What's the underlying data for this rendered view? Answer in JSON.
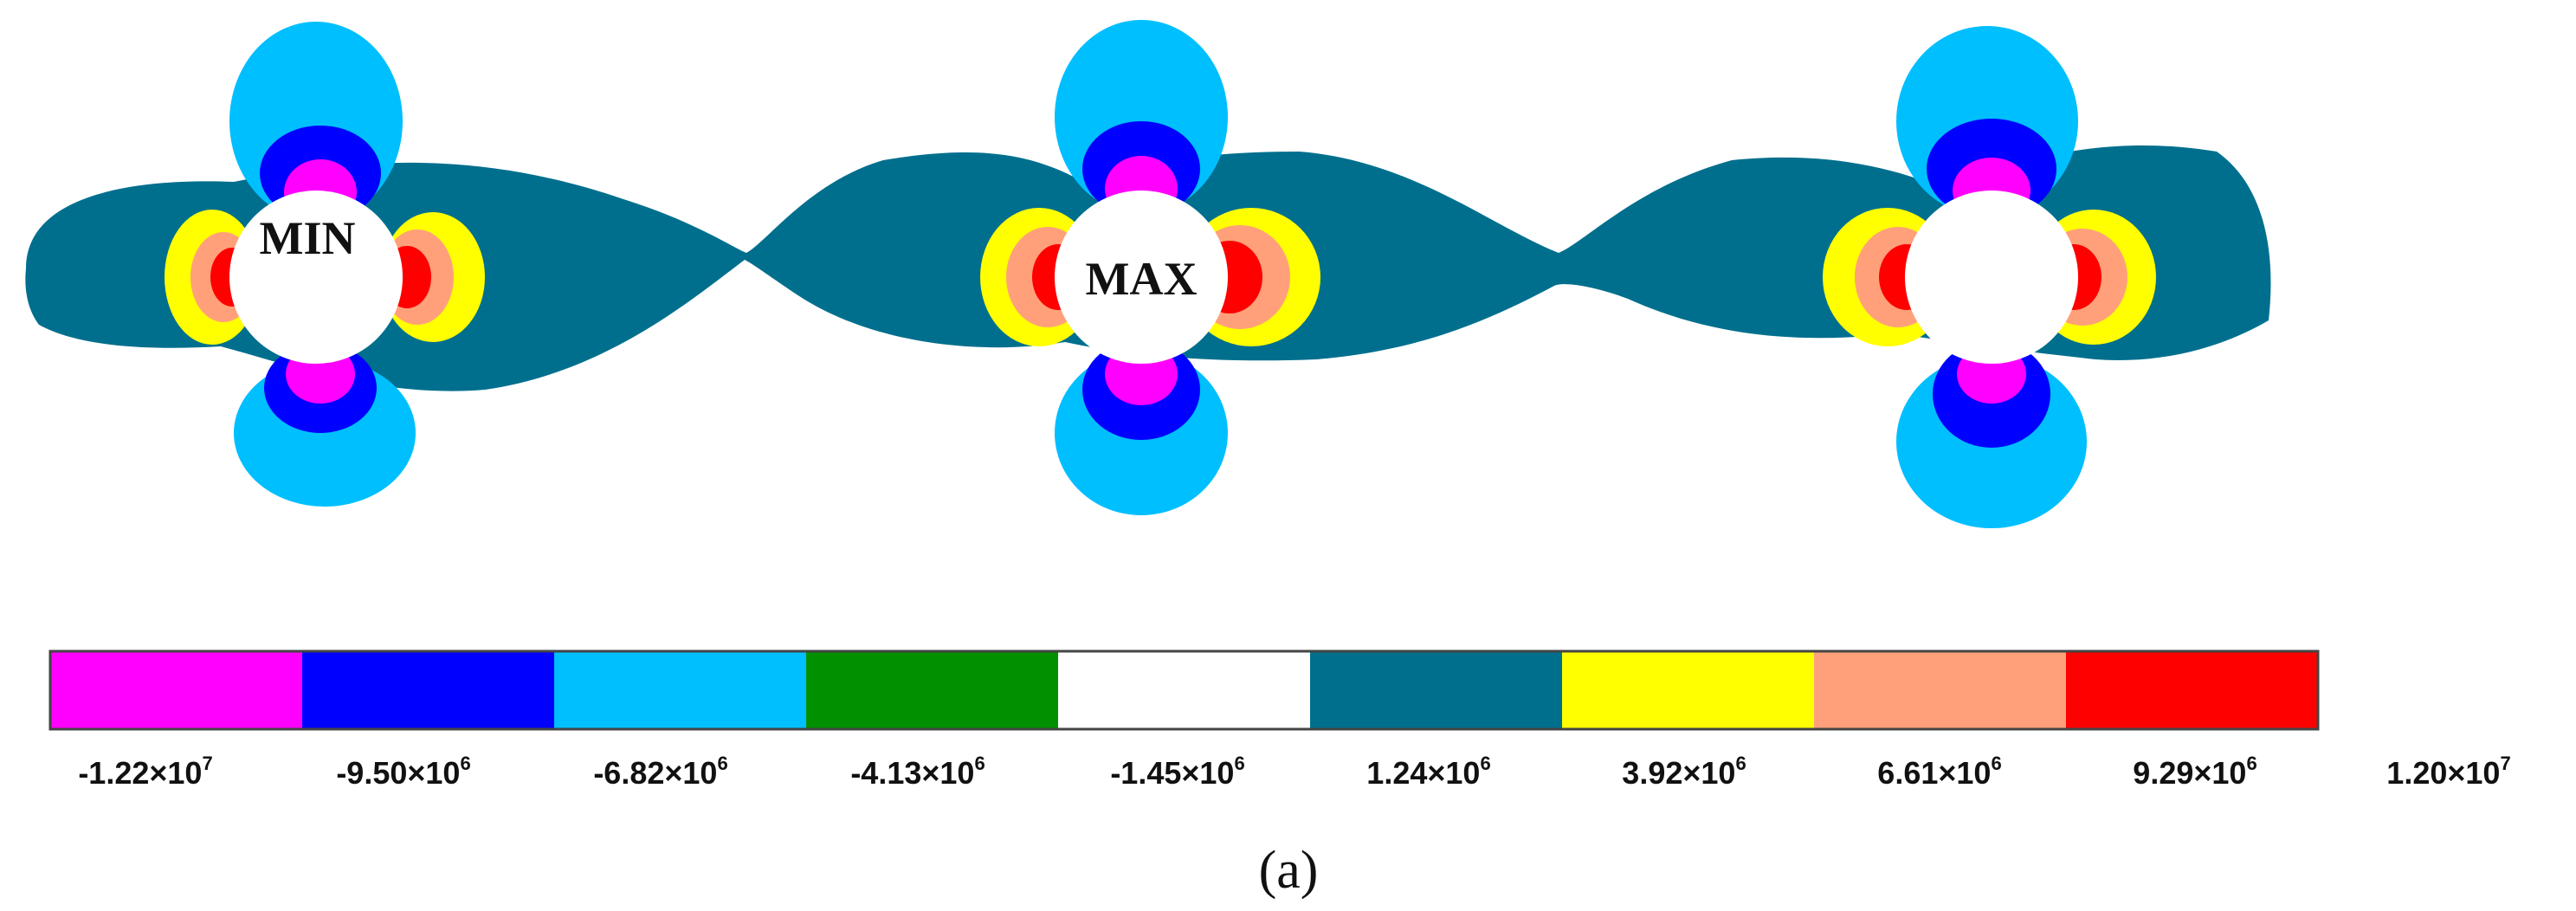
{
  "colors": {
    "band1": "#FF00FF",
    "band2": "#0000FF",
    "band3": "#00BFFF",
    "band4": "#009000",
    "band5": "#FFFFFF",
    "band6": "#006F8E",
    "band7": "#FFFF00",
    "band8": "#FFA07A",
    "band9": "#FF0000"
  },
  "holes": [
    {
      "label": "MIN"
    },
    {
      "label": "MAX"
    },
    {
      "label": ""
    }
  ],
  "legend": {
    "ticks": [
      {
        "mant": "-1.22×10",
        "exp": "7"
      },
      {
        "mant": "-9.50×10",
        "exp": "6"
      },
      {
        "mant": "-6.82×10",
        "exp": "6"
      },
      {
        "mant": "-4.13×10",
        "exp": "6"
      },
      {
        "mant": "-1.45×10",
        "exp": "6"
      },
      {
        "mant": "1.24×10",
        "exp": "6"
      },
      {
        "mant": "3.92×10",
        "exp": "6"
      },
      {
        "mant": "6.61×10",
        "exp": "6"
      },
      {
        "mant": "9.29×10",
        "exp": "6"
      },
      {
        "mant": "1.20×10",
        "exp": "7"
      }
    ]
  },
  "caption": "(a)"
}
